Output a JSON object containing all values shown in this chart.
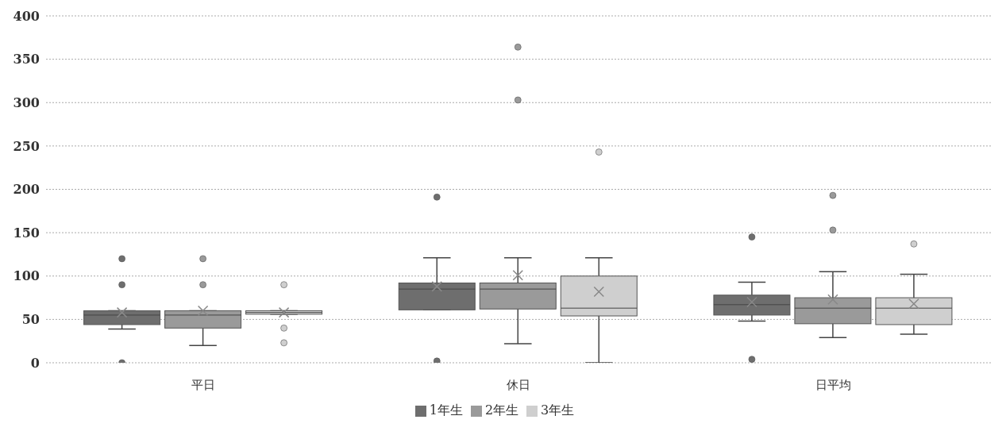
{
  "chart_data": {
    "type": "box",
    "categories": [
      "平日",
      "休日",
      "日平均"
    ],
    "series": [
      {
        "name": "1年生",
        "color": "#6e6e6e",
        "boxes": [
          {
            "low": 39,
            "q1": 44,
            "median": 55,
            "q3": 60,
            "high": 60,
            "mean": 58,
            "outliers": [
              120,
              90,
              0
            ]
          },
          {
            "low": 61,
            "q1": 61,
            "median": 85,
            "q3": 92,
            "high": 121,
            "mean": 88,
            "outliers": [
              191,
              2
            ]
          },
          {
            "low": 48,
            "q1": 55,
            "median": 67,
            "q3": 78,
            "high": 93,
            "mean": 70,
            "outliers": [
              145,
              4
            ]
          }
        ]
      },
      {
        "name": "2年生",
        "color": "#9a9a9a",
        "boxes": [
          {
            "low": 20,
            "q1": 40,
            "median": 55,
            "q3": 60,
            "high": 60,
            "mean": 60,
            "outliers": [
              120,
              90
            ]
          },
          {
            "low": 22,
            "q1": 62,
            "median": 85,
            "q3": 92,
            "high": 121,
            "mean": 101,
            "outliers": [
              364,
              303
            ]
          },
          {
            "low": 29,
            "q1": 45,
            "median": 63,
            "q3": 75,
            "high": 105,
            "mean": 73,
            "outliers": [
              193,
              153
            ]
          }
        ]
      },
      {
        "name": "3年生",
        "color": "#cfcfcf",
        "boxes": [
          {
            "low": 56,
            "q1": 56,
            "median": 58,
            "q3": 60,
            "high": 60,
            "mean": 58,
            "outliers": [
              90,
              40,
              23
            ]
          },
          {
            "low": 0,
            "q1": 54,
            "median": 63,
            "q3": 100,
            "high": 121,
            "mean": 82,
            "outliers": [
              243
            ]
          },
          {
            "low": 33,
            "q1": 44,
            "median": 63,
            "q3": 75,
            "high": 102,
            "mean": 68,
            "outliers": [
              137
            ]
          }
        ]
      }
    ],
    "ylim": [
      0,
      400
    ],
    "yticks": [
      0,
      50,
      100,
      150,
      200,
      250,
      300,
      350,
      400
    ],
    "grid": "y",
    "legend": "bottom",
    "marker": "circle"
  }
}
